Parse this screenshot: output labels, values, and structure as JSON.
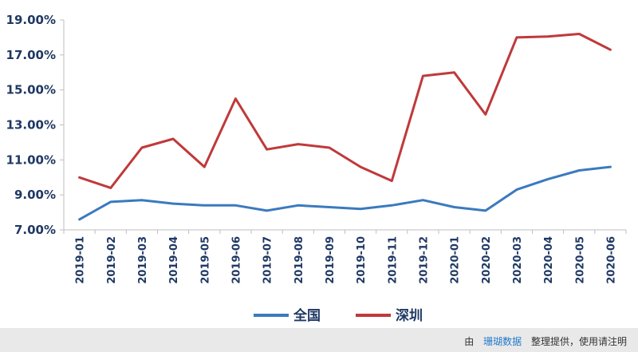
{
  "chart_data": {
    "type": "line",
    "categories": [
      "2019-01",
      "2019-02",
      "2019-03",
      "2019-04",
      "2019-05",
      "2019-06",
      "2019-07",
      "2019-08",
      "2019-09",
      "2019-10",
      "2019-11",
      "2019-12",
      "2020-01",
      "2020-02",
      "2020-03",
      "2020-04",
      "2020-05",
      "2020-06"
    ],
    "series": [
      {
        "name": "全国",
        "color": "#3a7abf",
        "values": [
          7.6,
          8.6,
          8.7,
          8.5,
          8.4,
          8.4,
          8.1,
          8.4,
          8.3,
          8.2,
          8.4,
          8.7,
          8.3,
          8.1,
          9.3,
          9.9,
          10.4,
          10.6
        ]
      },
      {
        "name": "深圳",
        "color": "#c0393b",
        "values": [
          10.0,
          9.4,
          11.7,
          12.2,
          10.6,
          14.5,
          11.6,
          11.9,
          11.7,
          10.6,
          9.8,
          15.8,
          16.0,
          13.6,
          18.0,
          18.05,
          18.2,
          17.3
        ]
      }
    ],
    "yticks": [
      "7.00%",
      "9.00%",
      "11.00%",
      "13.00%",
      "15.00%",
      "17.00%",
      "19.00%"
    ],
    "ylim": [
      7,
      19
    ],
    "grid": false,
    "legend": "bottom",
    "title": "",
    "xlabel": "",
    "ylabel": ""
  },
  "footer": {
    "prefix": "由",
    "brand": "珊瑚数据",
    "suffix": "整理提供，使用请注明"
  }
}
